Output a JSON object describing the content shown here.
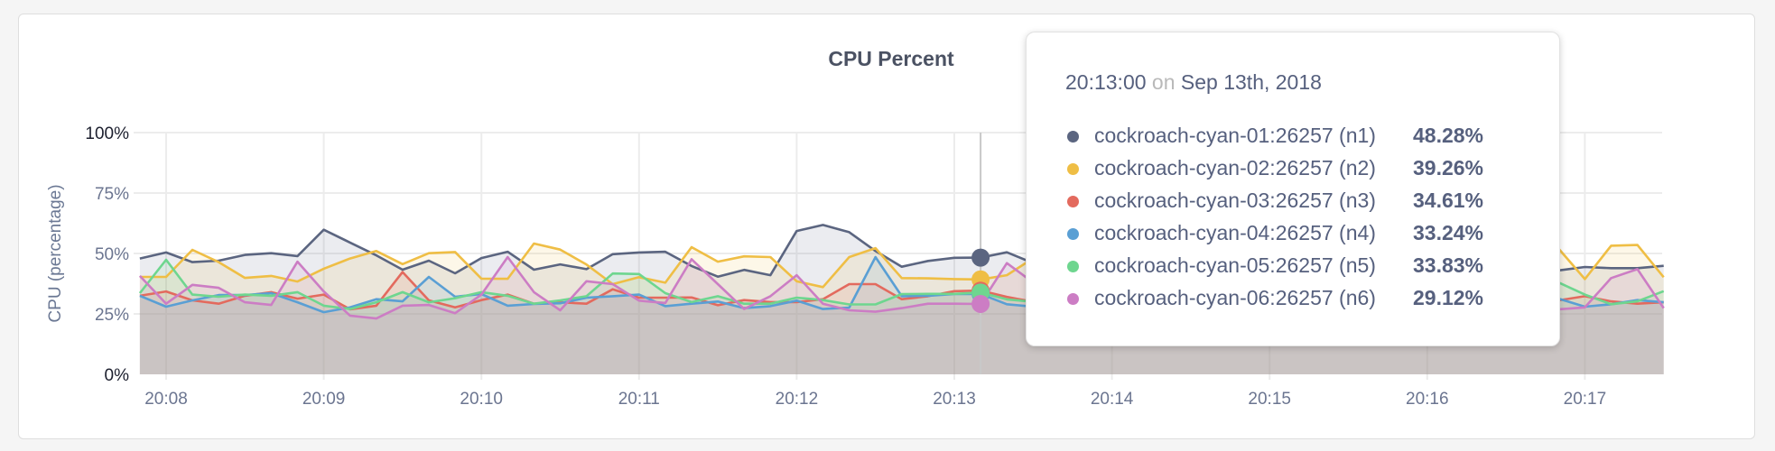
{
  "chart_data": {
    "type": "area",
    "title": "CPU Percent",
    "ylabel": "CPU (percentage)",
    "xlabel": "",
    "ylim": [
      0,
      100
    ],
    "yticks": [
      "0%",
      "25%",
      "50%",
      "75%",
      "100%"
    ],
    "ytick_values": [
      0,
      25,
      50,
      75,
      100
    ],
    "xticks": [
      "20:08",
      "20:09",
      "20:10",
      "20:11",
      "20:12",
      "20:13",
      "20:14",
      "20:15",
      "20:16",
      "20:17"
    ],
    "x_start": "20:07:50",
    "x_step_seconds": 10,
    "grid": true,
    "series": [
      {
        "name": "cockroach-cyan-01:26257 (n1)",
        "color": "#5b6580",
        "values": [
          47.9,
          50.4,
          46.4,
          47,
          49.4,
          50.1,
          48.9,
          59.8,
          54.5,
          49.2,
          43.3,
          47,
          41.8,
          48.1,
          50.7,
          43.3,
          45.5,
          43.5,
          49.7,
          50.4,
          50.7,
          44.8,
          40.4,
          43.2,
          41,
          59.3,
          61.8,
          58.8,
          51,
          44.5,
          46.9,
          48.2,
          48.28,
          50.5,
          46,
          44,
          45,
          47,
          48,
          46,
          45,
          47,
          49,
          46,
          44,
          45,
          47,
          46,
          44,
          48,
          46,
          45,
          44,
          43.5,
          43,
          44.4,
          43.9,
          43.9,
          44.9
        ]
      },
      {
        "name": "cockroach-cyan-02:26257 (n2)",
        "color": "#efbe45",
        "values": [
          40.3,
          40.3,
          51.5,
          46.4,
          39.9,
          40.7,
          38.4,
          43.7,
          47.9,
          51,
          45.6,
          50.1,
          50.6,
          39.6,
          39.5,
          54.1,
          51.6,
          45.4,
          37.3,
          40.2,
          37.9,
          52.6,
          46.6,
          48.8,
          48.5,
          38.5,
          36.1,
          48.5,
          52.2,
          39.8,
          39.7,
          39.4,
          39.26,
          41,
          48,
          44,
          40,
          46,
          50,
          42,
          39,
          45,
          48,
          41,
          38,
          44,
          50,
          46,
          40,
          43,
          49,
          45,
          41,
          47,
          52,
          39.4,
          53.2,
          53.5,
          40.2
        ]
      },
      {
        "name": "cockroach-cyan-03:26257 (n3)",
        "color": "#e36a5e",
        "values": [
          32.5,
          34.3,
          30.6,
          29.2,
          32.5,
          34,
          31.3,
          33,
          26.9,
          28.4,
          42.3,
          30.6,
          27.7,
          30.7,
          33,
          29.2,
          29.8,
          29.2,
          35.2,
          31.7,
          31.7,
          31.8,
          28.6,
          30.7,
          29.9,
          29.9,
          31.1,
          37.3,
          37.3,
          31.1,
          32.3,
          34.4,
          34.61,
          32,
          30,
          31,
          33,
          29,
          30,
          32,
          34,
          31,
          30,
          29,
          31,
          33,
          32,
          30,
          31,
          29,
          30,
          32,
          31,
          30,
          30.6,
          32.3,
          30.2,
          29.2,
          29.8
        ]
      },
      {
        "name": "cockroach-cyan-04:26257 (n4)",
        "color": "#5a9fd4",
        "values": [
          32.5,
          28,
          30.6,
          32.8,
          32.8,
          33.6,
          29.8,
          25.7,
          27.7,
          31.1,
          30.2,
          40.3,
          32.1,
          33.2,
          28.4,
          29.1,
          29.4,
          31.7,
          32.3,
          33,
          28.2,
          29.2,
          30.1,
          27.4,
          28.2,
          30.5,
          27,
          27.6,
          48.5,
          32.3,
          32.5,
          33.2,
          33.24,
          29,
          28,
          30,
          31,
          29,
          28,
          32,
          30,
          29,
          31,
          28,
          30,
          29,
          31,
          30,
          28,
          29,
          31,
          30,
          29,
          30,
          31.3,
          28,
          29,
          30.7,
          29.8
        ]
      },
      {
        "name": "cockroach-cyan-05:26257 (n5)",
        "color": "#6ed68f",
        "values": [
          33.6,
          47.4,
          33,
          32.1,
          33,
          32.5,
          34,
          28.4,
          27,
          29.8,
          34,
          29.8,
          31.5,
          34,
          32.5,
          29.2,
          30.6,
          32.3,
          41.7,
          41.5,
          33.6,
          29.9,
          32.3,
          29.2,
          29.2,
          31.7,
          30.7,
          28.9,
          28.9,
          33.2,
          33.3,
          33.3,
          33.83,
          31,
          30,
          32,
          34,
          31,
          29,
          33,
          35,
          31,
          30,
          32,
          29,
          31,
          33,
          36,
          32,
          30,
          34,
          37,
          35,
          36,
          38,
          33,
          29,
          30.2,
          34.4
        ]
      },
      {
        "name": "cockroach-cyan-06:26257 (n6)",
        "color": "#cc7dc4",
        "values": [
          40.7,
          29.2,
          37,
          35.8,
          29.8,
          28.7,
          46.6,
          34.3,
          24.3,
          23.1,
          28.4,
          28.7,
          25.3,
          33,
          48.5,
          34,
          26.5,
          38.5,
          37.3,
          30.5,
          29.5,
          47.6,
          37.3,
          27,
          32.3,
          41,
          29.2,
          26.5,
          25.9,
          27.4,
          29.2,
          29.2,
          29.12,
          46,
          38,
          30,
          27,
          29,
          31,
          28,
          26,
          30,
          34,
          29,
          27,
          31,
          28,
          26,
          29,
          32,
          28,
          27,
          30,
          28,
          26.9,
          27.7,
          39.8,
          43.5,
          27.4
        ]
      }
    ],
    "hover_index": 32
  },
  "tooltip": {
    "time": "20:13:00",
    "on": "on",
    "date": "Sep 13th, 2018",
    "rows": [
      {
        "label": "cockroach-cyan-01:26257 (n1)",
        "value": "48.28%",
        "color": "#5b6580"
      },
      {
        "label": "cockroach-cyan-02:26257 (n2)",
        "value": "39.26%",
        "color": "#efbe45"
      },
      {
        "label": "cockroach-cyan-03:26257 (n3)",
        "value": "34.61%",
        "color": "#e36a5e"
      },
      {
        "label": "cockroach-cyan-04:26257 (n4)",
        "value": "33.24%",
        "color": "#5a9fd4"
      },
      {
        "label": "cockroach-cyan-05:26257 (n5)",
        "value": "33.83%",
        "color": "#6ed68f"
      },
      {
        "label": "cockroach-cyan-06:26257 (n6)",
        "value": "29.12%",
        "color": "#cc7dc4"
      }
    ]
  }
}
